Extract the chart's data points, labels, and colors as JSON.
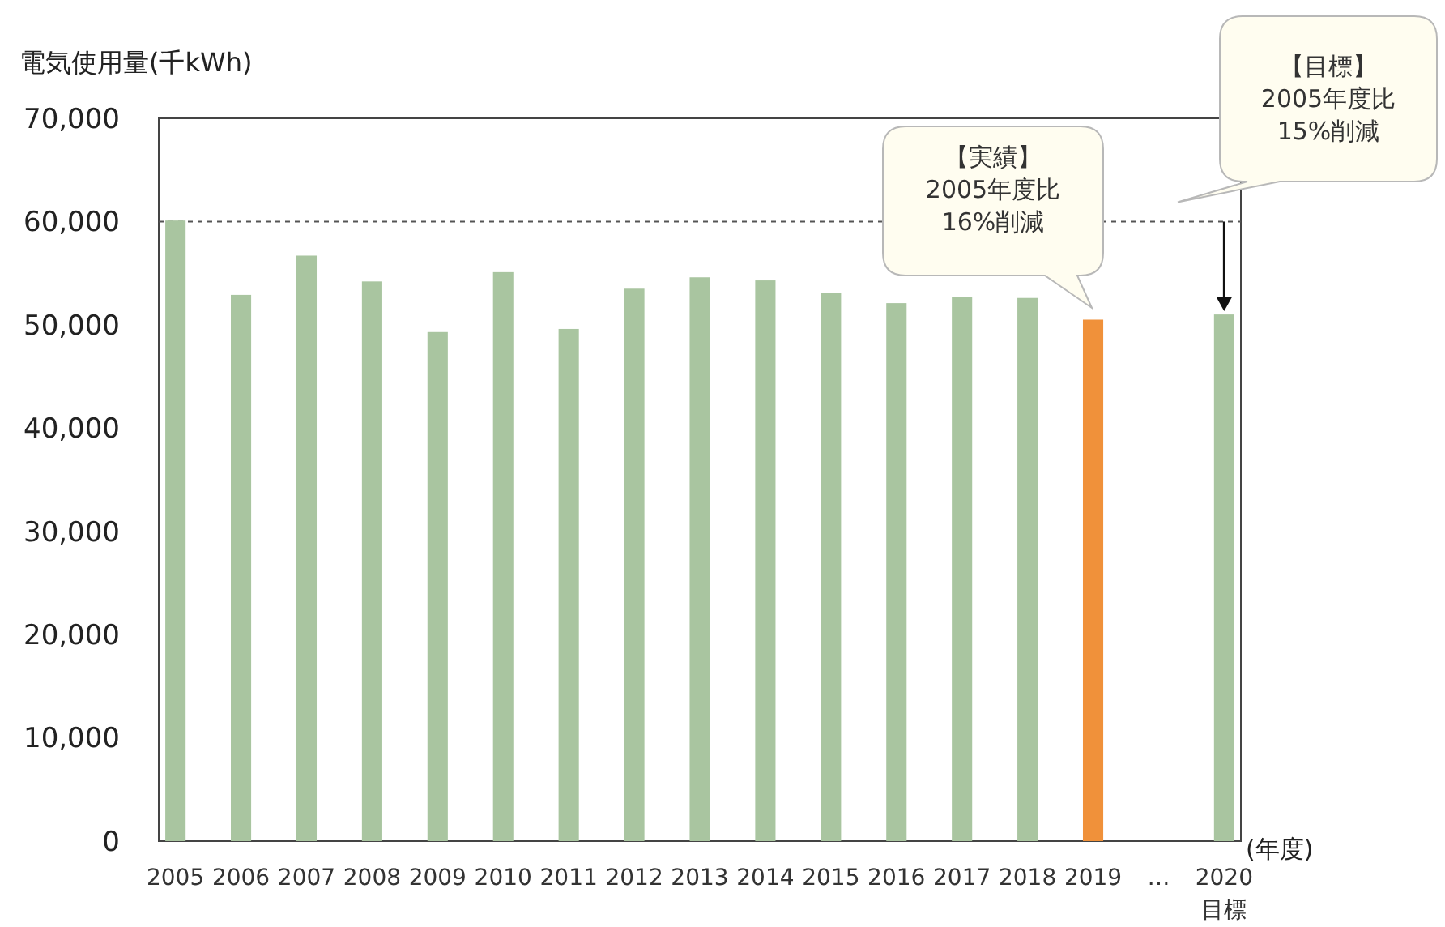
{
  "chart_data": {
    "type": "bar",
    "ylabel": "電気使用量(千kWh)",
    "xlabel": "(年度)",
    "categories": [
      "2005",
      "2006",
      "2007",
      "2008",
      "2009",
      "2010",
      "2011",
      "2012",
      "2013",
      "2014",
      "2015",
      "2016",
      "2017",
      "2018",
      "2019",
      "…",
      "2020\n目標"
    ],
    "values": [
      60100,
      52900,
      56700,
      54200,
      49300,
      55100,
      49600,
      53500,
      54600,
      54300,
      53100,
      52100,
      52700,
      52600,
      50500,
      null,
      51000
    ],
    "colors": [
      "#a9c5a0",
      "#a9c5a0",
      "#a9c5a0",
      "#a9c5a0",
      "#a9c5a0",
      "#a9c5a0",
      "#a9c5a0",
      "#a9c5a0",
      "#a9c5a0",
      "#a9c5a0",
      "#a9c5a0",
      "#a9c5a0",
      "#a9c5a0",
      "#a9c5a0",
      "#f0913a",
      "#a9c5a0",
      "#a9c5a0"
    ],
    "ylim": [
      0,
      70000
    ],
    "yticks": [
      {
        "value": 0,
        "label": "0"
      },
      {
        "value": 10000,
        "label": "10,000"
      },
      {
        "value": 20000,
        "label": "20,000"
      },
      {
        "value": 30000,
        "label": "30,000"
      },
      {
        "value": 40000,
        "label": "40,000"
      },
      {
        "value": 50000,
        "label": "50,000"
      },
      {
        "value": 60000,
        "label": "60,000"
      },
      {
        "value": 70000,
        "label": "70,000"
      }
    ],
    "grid": false,
    "ref_lines": [
      {
        "axis": "y",
        "value": 60000,
        "line_style": "dashed",
        "color": "#555555"
      }
    ],
    "annotations": [
      "【実績】\n2005年度比\n16%削減",
      "【目標】\n2005年度比\n15%削減"
    ]
  }
}
